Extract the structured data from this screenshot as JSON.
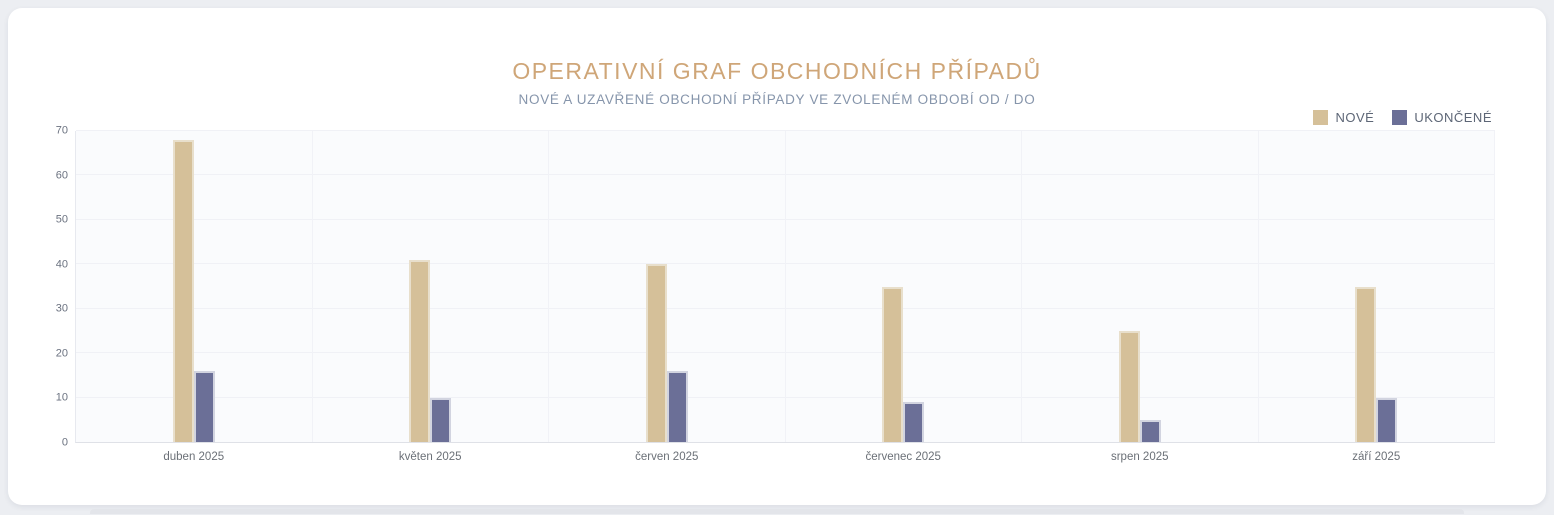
{
  "page": {
    "background_color": "#eceef2",
    "card_background_color": "#ffffff"
  },
  "header": {
    "title": "OPERATIVNÍ GRAF OBCHODNÍCH PŘÍPADŮ",
    "title_color": "#cfa678",
    "subtitle": "NOVÉ A UZAVŘENÉ OBCHODNÍ PŘÍPADY VE ZVOLENÉM OBDOBÍ OD / DO",
    "subtitle_color": "#8695ab"
  },
  "legend": {
    "position": "top-right",
    "items": [
      {
        "label": "NOVÉ",
        "color": "#d5c099"
      },
      {
        "label": "UKONČENÉ",
        "color": "#6b6f97"
      }
    ]
  },
  "chart_data": {
    "type": "bar",
    "title": "OPERATIVNÍ GRAF OBCHODNÍCH PŘÍPADŮ",
    "subtitle": "NOVÉ A UZAVŘENÉ OBCHODNÍ PŘÍPADY VE ZVOLENÉM OBDOBÍ OD / DO",
    "categories": [
      "duben 2025",
      "květen 2025",
      "červen 2025",
      "červenec 2025",
      "srpen 2025",
      "září 2025"
    ],
    "series": [
      {
        "name": "NOVÉ",
        "color": "#d5c099",
        "border_color": "#e8dfcc",
        "values": [
          68,
          41,
          40,
          35,
          25,
          35
        ]
      },
      {
        "name": "UKONČENÉ",
        "color": "#6b6f97",
        "border_color": "#d2d4e0",
        "values": [
          16,
          10,
          16,
          9,
          5,
          10
        ]
      }
    ],
    "xlabel": "",
    "ylabel": "",
    "ylim": [
      0,
      70
    ],
    "yticks": [
      0,
      10,
      20,
      30,
      40,
      50,
      60,
      70
    ],
    "grid": true,
    "legend_position": "top-right"
  }
}
